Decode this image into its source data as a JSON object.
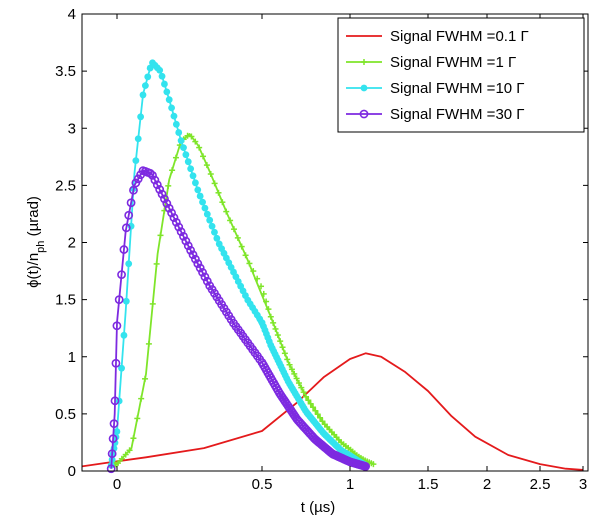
{
  "chart_data": {
    "type": "line",
    "xlabel": "t (µs)",
    "ylabel_main": "ϕ(t)/n",
    "ylabel_sub": "ph",
    "ylabel_unit": " (µrad)",
    "ylim": [
      0,
      4
    ],
    "x_scale": "nonlinear (compressed at large t)",
    "x_ticks": [
      {
        "value": 0,
        "label": "0"
      },
      {
        "value": 0.5,
        "label": "0.5"
      },
      {
        "value": 1,
        "label": "1"
      },
      {
        "value": 1.5,
        "label": "1.5"
      },
      {
        "value": 2,
        "label": "2"
      },
      {
        "value": 2.5,
        "label": "2.5"
      },
      {
        "value": 3,
        "label": "3"
      }
    ],
    "y_ticks": [
      {
        "value": 0,
        "label": "0"
      },
      {
        "value": 0.5,
        "label": "0.5"
      },
      {
        "value": 1,
        "label": "1"
      },
      {
        "value": 1.5,
        "label": "1.5"
      },
      {
        "value": 2,
        "label": "2"
      },
      {
        "value": 2.5,
        "label": "2.5"
      },
      {
        "value": 3,
        "label": "3"
      },
      {
        "value": 3.5,
        "label": "3.5"
      },
      {
        "value": 4,
        "label": "4"
      }
    ],
    "legend_position": "top-right",
    "grid": false,
    "series": [
      {
        "name": "Signal FWHM =0.1 Γ",
        "color": "#e41a1c",
        "marker": "none",
        "x": [
          -0.3,
          -0.1,
          0.1,
          0.3,
          0.5,
          0.7,
          0.85,
          1.0,
          1.1,
          1.2,
          1.35,
          1.5,
          1.7,
          1.9,
          2.2,
          2.5,
          2.8,
          3.0
        ],
        "y": [
          0.04,
          0.07,
          0.12,
          0.2,
          0.35,
          0.6,
          0.82,
          0.98,
          1.03,
          1.0,
          0.87,
          0.7,
          0.48,
          0.3,
          0.14,
          0.06,
          0.02,
          0.01
        ]
      },
      {
        "name": "Signal FWHM =1 Γ",
        "color": "#7fe52a",
        "marker": "plus",
        "x": [
          -0.05,
          0.0,
          0.05,
          0.1,
          0.14,
          0.18,
          0.22,
          0.25,
          0.28,
          0.32,
          0.38,
          0.45,
          0.55,
          0.65,
          0.75,
          0.85,
          0.95,
          1.05,
          1.1,
          1.15
        ],
        "y": [
          0.05,
          0.06,
          0.2,
          0.85,
          1.9,
          2.55,
          2.88,
          2.95,
          2.85,
          2.62,
          2.25,
          1.85,
          1.35,
          0.95,
          0.65,
          0.42,
          0.25,
          0.13,
          0.09,
          0.06
        ]
      },
      {
        "name": "Signal FWHM =10 Γ",
        "color": "#33e3ee",
        "marker": "dot",
        "x": [
          -0.05,
          0.0,
          0.03,
          0.06,
          0.09,
          0.12,
          0.15,
          0.18,
          0.22,
          0.28,
          0.35,
          0.45,
          0.55,
          0.65,
          0.75,
          0.85,
          0.95,
          1.05,
          1.1
        ],
        "y": [
          0.05,
          0.35,
          1.4,
          2.6,
          3.3,
          3.58,
          3.5,
          3.25,
          2.9,
          2.45,
          2.0,
          1.5,
          1.1,
          0.78,
          0.52,
          0.33,
          0.18,
          0.09,
          0.05
        ]
      },
      {
        "name": "Signal FWHM =30 Γ",
        "color": "#7d2ae0",
        "marker": "circle",
        "x": [
          -0.05,
          -0.02,
          0.0,
          0.03,
          0.06,
          0.09,
          0.12,
          0.15,
          0.2,
          0.25,
          0.32,
          0.4,
          0.5,
          0.6,
          0.7,
          0.8,
          0.9,
          1.0,
          1.1
        ],
        "y": [
          0.02,
          0.5,
          1.3,
          2.1,
          2.5,
          2.63,
          2.6,
          2.45,
          2.2,
          1.95,
          1.62,
          1.3,
          0.95,
          0.68,
          0.45,
          0.28,
          0.15,
          0.08,
          0.04
        ]
      }
    ]
  }
}
